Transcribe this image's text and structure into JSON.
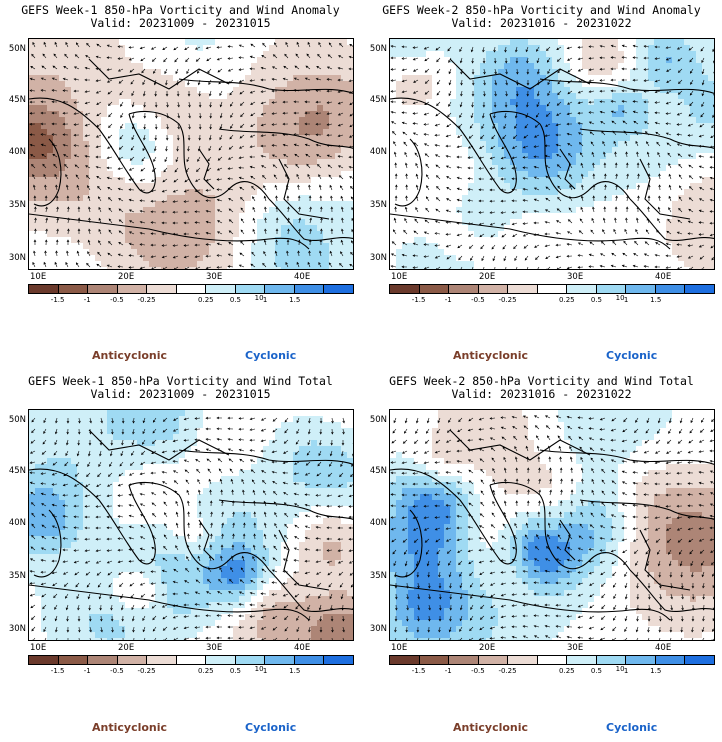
{
  "panels": [
    {
      "title_line1": "GEFS Week-1 850-hPa Vorticity and Wind Anomaly",
      "title_line2": "Valid: 20231009 - 20231015",
      "anticyclonic": "Anticyclonic",
      "cyclonic": "Cyclonic"
    },
    {
      "title_line1": "GEFS Week-2 850-hPa Vorticity and Wind Anomaly",
      "title_line2": "Valid: 20231016 - 20231022",
      "anticyclonic": "Anticyclonic",
      "cyclonic": "Cyclonic"
    },
    {
      "title_line1": "GEFS Week-1 850-hPa Vorticity and Wind Total",
      "title_line2": "Valid: 20231009 - 20231015",
      "anticyclonic": "Anticyclonic",
      "cyclonic": "Cyclonic"
    },
    {
      "title_line1": "GEFS Week-2 850-hPa Vorticity and Wind Total",
      "title_line2": "Valid: 20231016 - 20231022",
      "anticyclonic": "Anticyclonic",
      "cyclonic": "Cyclonic"
    }
  ],
  "lat_labels": [
    "50N",
    "45N",
    "40N",
    "35N",
    "30N"
  ],
  "lon_labels": [
    "10E",
    "20E",
    "30E",
    "40E"
  ],
  "colorbar_labels": [
    "-1.5",
    "-1",
    "-0.5",
    "-0.25",
    "0.25",
    "0.5",
    "1",
    "1.5"
  ],
  "colorbar_scale_label": "10",
  "colorbar_colors": [
    "#6b3a2c",
    "#8b5a47",
    "#ad8576",
    "#d1b2a6",
    "#ecdcd5",
    "#ffffff",
    "#cfeff8",
    "#9fdaf3",
    "#6fb8ee",
    "#3f8fe6",
    "#1e6fe0"
  ],
  "colors": {
    "anticyclonic": "#7a3e2a",
    "cyclonic": "#1a63c9"
  }
}
